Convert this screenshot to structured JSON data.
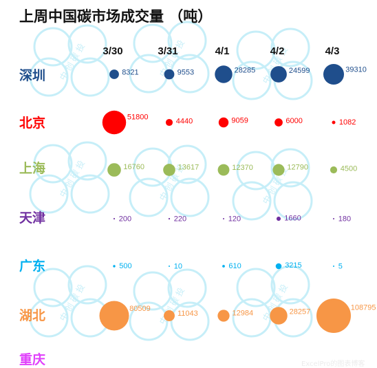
{
  "watermark_text": "中 创 碳 投",
  "footer_watermark": "ExcelPro的图表博客",
  "chart_data": {
    "type": "bubble",
    "title": "上周中国碳市场成交量 （吨）",
    "dates": [
      "3/30",
      "3/31",
      "4/1",
      "4/2",
      "4/3"
    ],
    "series": [
      {
        "name": "深圳",
        "color": "#1f4e8c",
        "values": [
          8321,
          9553,
          28285,
          24599,
          39310
        ],
        "labels": [
          "8321",
          "9553",
          "28285",
          "24599",
          "39310"
        ]
      },
      {
        "name": "北京",
        "color": "#ff0000",
        "values": [
          51800,
          4440,
          9059,
          6000,
          1082
        ],
        "labels": [
          "51800",
          "4440",
          "9059",
          "6000",
          "1082"
        ]
      },
      {
        "name": "上海",
        "color": "#9bbb59",
        "values": [
          16760,
          13617,
          12370,
          12790,
          4500
        ],
        "labels": [
          "16760",
          "13617",
          "12370",
          "12790",
          "4500"
        ]
      },
      {
        "name": "天津",
        "color": "#7030a0",
        "values": [
          200,
          220,
          120,
          1660,
          180
        ],
        "labels": [
          "200",
          "220",
          "120",
          "1660",
          "180"
        ]
      },
      {
        "name": "广东",
        "color": "#00b0f0",
        "values": [
          500,
          10,
          610,
          3215,
          5
        ],
        "labels": [
          "500",
          "10",
          "610",
          "3215",
          "5"
        ]
      },
      {
        "name": "湖北",
        "color": "#f79646",
        "values": [
          80509,
          11043,
          12984,
          28257,
          108795
        ],
        "labels": [
          "80509",
          "11043",
          "12984",
          "28257",
          "108795"
        ]
      },
      {
        "name": "重庆",
        "color": "#e040fb",
        "values": [],
        "labels": []
      }
    ],
    "grid": false,
    "legend": "none"
  }
}
